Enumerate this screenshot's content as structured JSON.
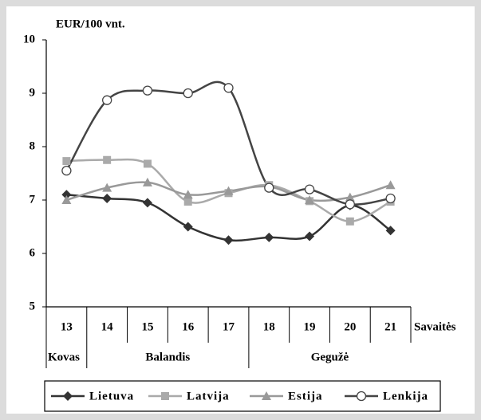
{
  "chart_data": {
    "type": "line",
    "y_label": "EUR/100 vnt.",
    "x_label": "Savaitės",
    "categories": [
      "13",
      "14",
      "15",
      "16",
      "17",
      "18",
      "19",
      "20",
      "21"
    ],
    "month_groups": [
      {
        "label": "Kovas",
        "weeks": [
          "13"
        ]
      },
      {
        "label": "Balandis",
        "weeks": [
          "14",
          "15",
          "16",
          "17"
        ]
      },
      {
        "label": "Gegužė",
        "weeks": [
          "18",
          "19",
          "20",
          "21"
        ]
      }
    ],
    "series": [
      {
        "name": "Lietuva",
        "color": "#333333",
        "marker": "diamond",
        "values": [
          7.1,
          7.03,
          6.95,
          6.5,
          6.25,
          6.3,
          6.32,
          6.9,
          6.43
        ]
      },
      {
        "name": "Latvija",
        "color": "#aaaaaa",
        "marker": "square",
        "values": [
          7.73,
          7.75,
          7.68,
          6.97,
          7.13,
          7.28,
          6.98,
          6.6,
          6.97
        ]
      },
      {
        "name": "Estija",
        "color": "#999999",
        "marker": "triangle",
        "values": [
          7.0,
          7.23,
          7.33,
          7.1,
          7.17,
          7.25,
          7.0,
          7.05,
          7.28
        ]
      },
      {
        "name": "Lenkija",
        "color": "#444444",
        "marker": "circle",
        "values": [
          7.55,
          8.87,
          9.05,
          9.0,
          9.1,
          7.23,
          7.2,
          6.92,
          7.03
        ]
      }
    ],
    "ylim": [
      5,
      10
    ],
    "yticks": [
      5,
      6,
      7,
      8,
      9,
      10
    ],
    "legend": "bottom"
  }
}
